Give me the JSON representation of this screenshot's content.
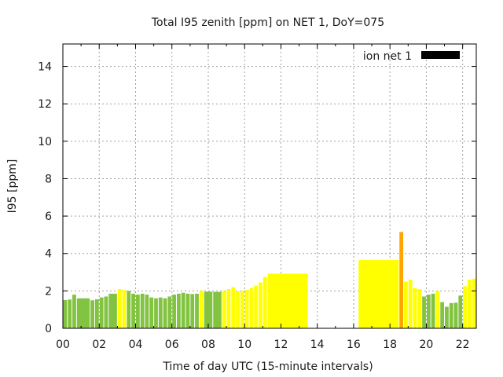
{
  "chart_data": {
    "type": "bar",
    "title": "Total I95 zenith [ppm] on NET 1, DoY=075",
    "xlabel": "Time of day UTC (15-minute intervals)",
    "ylabel": "I95 [ppm]",
    "xlim": [
      0,
      22.75
    ],
    "ylim": [
      0,
      15.2
    ],
    "grid": true,
    "legend": {
      "position": "top-right",
      "entries": [
        {
          "label": "ion net 1",
          "color": "#000000"
        }
      ]
    },
    "x_tick_labels": [
      "00",
      "02",
      "04",
      "06",
      "08",
      "10",
      "12",
      "14",
      "16",
      "18",
      "20",
      "22"
    ],
    "x_tick_values": [
      0,
      2,
      4,
      6,
      8,
      10,
      12,
      14,
      16,
      18,
      20,
      22
    ],
    "y_tick_labels": [
      "0",
      "2",
      "4",
      "6",
      "8",
      "10",
      "12",
      "14"
    ],
    "y_tick_values": [
      0,
      2,
      4,
      6,
      8,
      10,
      12,
      14
    ],
    "interval_hours": 0.25,
    "colors": {
      "green": "#82c341",
      "yellow": "#ffff00",
      "orange": "#ffa500"
    },
    "values": [
      1.51,
      1.54,
      1.8,
      1.6,
      1.6,
      1.6,
      1.5,
      1.55,
      1.65,
      1.7,
      1.85,
      1.85,
      2.1,
      2.05,
      2.0,
      1.85,
      1.8,
      1.85,
      1.8,
      1.65,
      1.6,
      1.65,
      1.6,
      1.7,
      1.8,
      1.85,
      1.9,
      1.85,
      1.83,
      1.85,
      2.0,
      1.96,
      1.96,
      1.95,
      1.95,
      2.0,
      2.1,
      2.2,
      1.97,
      2.0,
      2.05,
      2.15,
      2.28,
      2.45,
      2.75,
      2.92,
      2.92,
      2.92,
      2.92,
      2.92,
      2.92,
      2.92,
      2.92,
      2.92,
      null,
      null,
      null,
      null,
      null,
      null,
      null,
      null,
      null,
      null,
      null,
      3.65,
      3.65,
      3.65,
      3.65,
      3.65,
      3.65,
      3.65,
      3.65,
      3.65,
      5.15,
      2.5,
      2.6,
      2.15,
      2.1,
      1.7,
      1.8,
      1.85,
      2.0,
      1.4,
      1.15,
      1.35,
      1.37,
      1.75,
      2.25,
      2.6,
      2.65
    ],
    "bar_colors": [
      "green",
      "green",
      "green",
      "green",
      "green",
      "green",
      "green",
      "green",
      "green",
      "green",
      "green",
      "green",
      "yellow",
      "yellow",
      "green",
      "green",
      "green",
      "green",
      "green",
      "green",
      "green",
      "green",
      "green",
      "green",
      "green",
      "green",
      "green",
      "green",
      "green",
      "green",
      "yellow",
      "green",
      "green",
      "green",
      "green",
      "yellow",
      "yellow",
      "yellow",
      "yellow",
      "yellow",
      "yellow",
      "yellow",
      "yellow",
      "yellow",
      "yellow",
      "yellow",
      "yellow",
      "yellow",
      "yellow",
      "yellow",
      "yellow",
      "yellow",
      "yellow",
      "yellow",
      null,
      null,
      null,
      null,
      null,
      null,
      null,
      null,
      null,
      null,
      null,
      "yellow",
      "yellow",
      "yellow",
      "yellow",
      "yellow",
      "yellow",
      "yellow",
      "yellow",
      "yellow",
      "orange",
      "yellow",
      "yellow",
      "yellow",
      "yellow",
      "green",
      "green",
      "green",
      "yellow",
      "green",
      "green",
      "green",
      "green",
      "green",
      "yellow",
      "yellow",
      "yellow"
    ]
  }
}
